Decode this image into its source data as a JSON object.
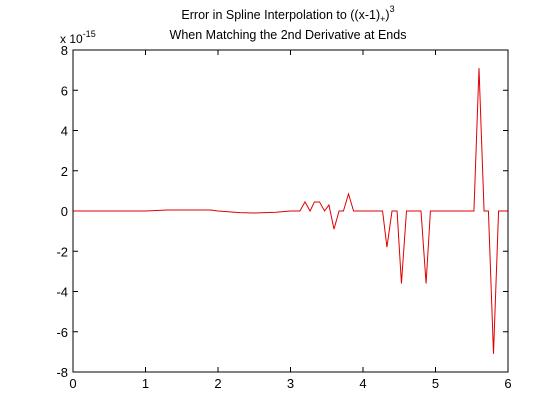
{
  "chart_data": {
    "type": "line",
    "title_line1": "Error in Spline Interpolation to ((x-1)",
    "title_sub": "+",
    "title_close": ")",
    "title_sup": "3",
    "title_line2": "When Matching the 2nd Derivative at Ends",
    "y_multiplier_base": "x 10",
    "y_multiplier_exp": "-15",
    "xlabel": "",
    "ylabel": "",
    "xlim": [
      0,
      6
    ],
    "ylim": [
      -8,
      8
    ],
    "x_ticks": [
      0,
      1,
      2,
      3,
      4,
      5,
      6
    ],
    "y_ticks": [
      -8,
      -6,
      -4,
      -2,
      0,
      2,
      4,
      6,
      8
    ],
    "grid": false,
    "series": [
      {
        "color": "#e00000",
        "x": [
          0,
          1.0,
          1.3,
          1.9,
          2.0,
          2.3,
          2.5,
          2.8,
          3.0,
          3.13,
          3.2,
          3.27,
          3.33,
          3.4,
          3.47,
          3.53,
          3.6,
          3.67,
          3.73,
          3.8,
          3.87,
          3.93,
          4.0,
          4.27,
          4.33,
          4.4,
          4.47,
          4.53,
          4.6,
          4.67,
          4.8,
          4.87,
          4.93,
          5.0,
          5.53,
          5.6,
          5.67,
          5.73,
          5.8,
          5.87,
          6.0
        ],
        "y": [
          0,
          0,
          0.05,
          0.05,
          0,
          -0.08,
          -0.1,
          -0.06,
          0,
          0,
          0.45,
          0,
          0.45,
          0.45,
          0,
          0.3,
          -0.9,
          0,
          0,
          0.85,
          0,
          0,
          0,
          0,
          -1.8,
          0,
          0,
          -3.6,
          0,
          0,
          0,
          -3.6,
          0,
          0,
          0,
          7.1,
          0,
          0,
          -7.1,
          0,
          0
        ]
      }
    ]
  }
}
